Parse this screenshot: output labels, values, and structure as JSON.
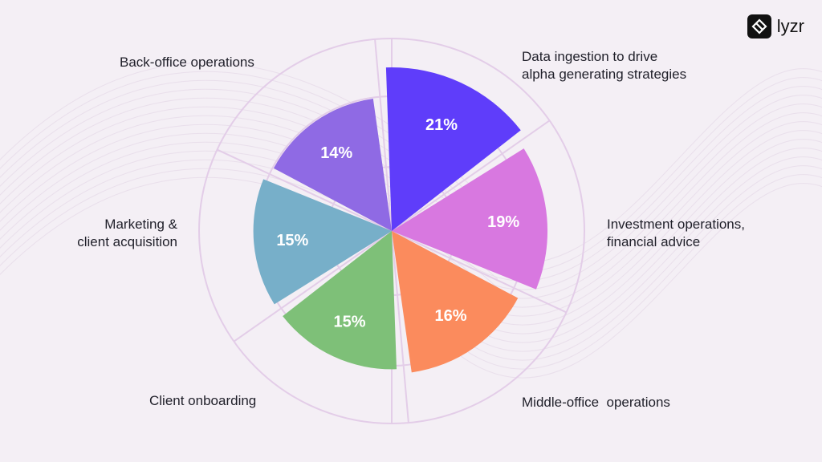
{
  "brand": {
    "name": "lyzr"
  },
  "colors": {
    "background": "#f4eff5",
    "grid": "#e3cde8",
    "text": "#1f1f29"
  },
  "chart_data": {
    "type": "polar-area",
    "title": "",
    "legend": "none",
    "slices": [
      {
        "label_lines": [
          "Data ingestion to drive",
          "alpha generating strategies"
        ],
        "value_label": "21%",
        "value": 21,
        "color": "#5f3dfa"
      },
      {
        "label_lines": [
          "Investment operations,",
          "financial advice"
        ],
        "value_label": "19%",
        "value": 19,
        "color": "#d878e0"
      },
      {
        "label_lines": [
          "Middle-office  operations"
        ],
        "value_label": "16%",
        "value": 16,
        "color": "#fb8b5d"
      },
      {
        "label_lines": [
          "Client onboarding"
        ],
        "value_label": "15%",
        "value": 15,
        "color": "#7ec078"
      },
      {
        "label_lines": [
          "Marketing &",
          "client acquisition"
        ],
        "value_label": "15%",
        "value": 15,
        "color": "#77afc9"
      },
      {
        "label_lines": [
          "Back-office operations"
        ],
        "value_label": "14%",
        "value": 14,
        "color": "#8f6ae4"
      }
    ]
  }
}
